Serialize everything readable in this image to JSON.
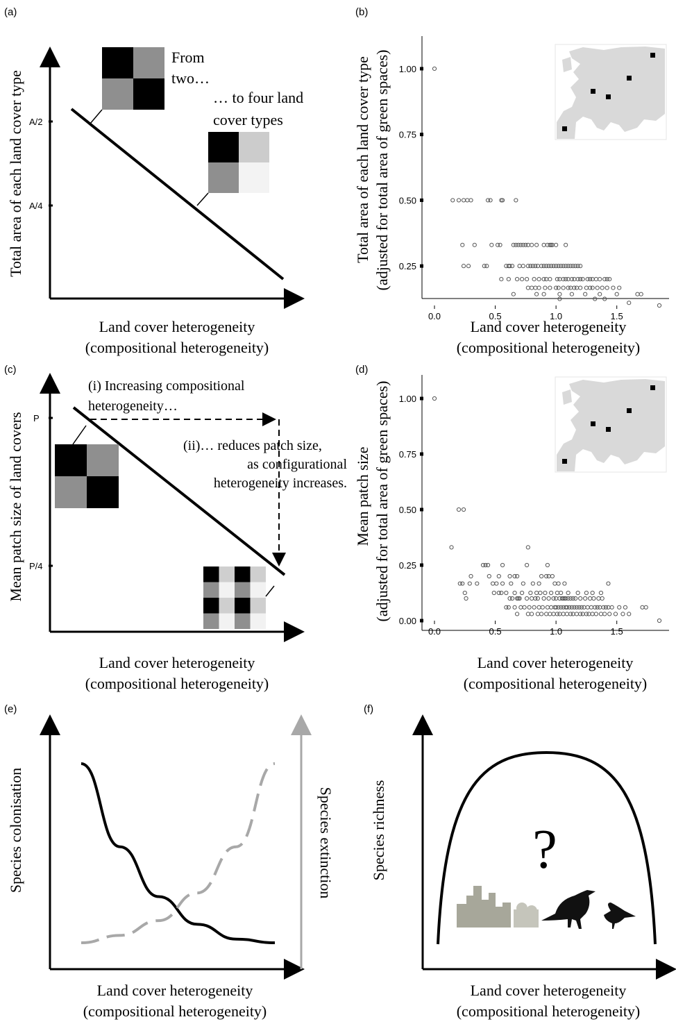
{
  "panels": {
    "a": {
      "label": "(a)",
      "ylabel": "Total area of each land cover type",
      "xlabel_line1": "Land cover heterogeneity",
      "xlabel_line2": "(compositional heterogeneity)",
      "ticks": [
        "A/2",
        "A/4"
      ],
      "annot_from_1": "From",
      "annot_from_2": "two…",
      "annot_to_1": "… to four land",
      "annot_to_2": "cover types"
    },
    "b": {
      "label": "(b)",
      "ylabel_line1": "Total area of each land cover type",
      "ylabel_line2": "(adjusted for total area of green spaces)",
      "xlabel_line1": "Land cover heterogeneity",
      "xlabel_line2": "(compositional heterogeneity)",
      "yticks": [
        "1.00",
        "0.75",
        "0.50",
        "0.25"
      ],
      "xticks": [
        "0.0",
        "0.5",
        "1.0",
        "1.5"
      ]
    },
    "c": {
      "label": "(c)",
      "ylabel": "Mean patch size of land covers",
      "xlabel_line1": "Land cover heterogeneity",
      "xlabel_line2": "(compositional heterogeneity)",
      "ticks": [
        "P",
        "P/4"
      ],
      "annot_i_1": "(i) Increasing compositional",
      "annot_i_2": "heterogeneity…",
      "annot_ii_1": "(ii)… reduces patch size,",
      "annot_ii_2": "as configurational",
      "annot_ii_3": "heterogeneity increases."
    },
    "d": {
      "label": "(d)",
      "ylabel_line1": "Mean patch size",
      "ylabel_line2": "(adjusted for total area of green spaces)",
      "xlabel_line1": "Land cover heterogeneity",
      "xlabel_line2": "(compositional heterogeneity)",
      "yticks": [
        "1.00",
        "0.75",
        "0.50",
        "0.25",
        "0.00"
      ],
      "xticks": [
        "0.0",
        "0.5",
        "1.0",
        "1.5"
      ]
    },
    "e": {
      "label": "(e)",
      "ylabel_left": "Species colonisation",
      "ylabel_right": "Species extinction",
      "xlabel_line1": "Land cover heterogeneity",
      "xlabel_line2": "(compositional heterogeneity)"
    },
    "f": {
      "label": "(f)",
      "ylabel": "Species richness",
      "xlabel_line1": "Land cover heterogeneity",
      "xlabel_line2": "(compositional heterogeneity)",
      "question": "?"
    }
  },
  "colors": {
    "line": "#000000",
    "grey_curve": "#a8a8a8",
    "map_fill": "#d9d9d9",
    "city": "#a7a79a"
  },
  "chart_data": [
    {
      "type": "line",
      "panel": "a",
      "series": [
        {
          "x": [
            0,
            1
          ],
          "y": [
            0.55,
            0.05
          ]
        }
      ],
      "yticks": [
        "A/2",
        "A/4"
      ]
    },
    {
      "type": "scatter",
      "panel": "b",
      "xlim": [
        0,
        1.85
      ],
      "ylim": [
        0.1,
        1.05
      ],
      "x": [
        0.0,
        0.15,
        0.2,
        0.24,
        0.27,
        0.3,
        0.44,
        0.46,
        0.55,
        0.56,
        0.67,
        0.23,
        0.33,
        0.47,
        0.52,
        0.54,
        0.65,
        0.67,
        0.69,
        0.71,
        0.73,
        0.75,
        0.77,
        0.8,
        0.84,
        0.9,
        0.93,
        0.95,
        0.96,
        0.97,
        1.0,
        1.08,
        0.24,
        0.28,
        0.41,
        0.43,
        0.59,
        0.61,
        0.62,
        0.64,
        0.7,
        0.73,
        0.77,
        0.79,
        0.81,
        0.83,
        0.85,
        0.88,
        0.9,
        0.92,
        0.94,
        0.96,
        0.98,
        1.0,
        1.02,
        1.04,
        1.06,
        1.08,
        1.1,
        1.12,
        1.14,
        1.16,
        1.18,
        1.2,
        0.55,
        0.61,
        0.68,
        0.72,
        0.76,
        0.82,
        0.86,
        0.9,
        0.92,
        0.95,
        1.01,
        1.03,
        1.06,
        1.08,
        1.1,
        1.13,
        1.15,
        1.18,
        1.2,
        1.22,
        1.26,
        1.28,
        1.3,
        1.33,
        1.36,
        1.4,
        1.42,
        1.44,
        0.77,
        0.8,
        0.83,
        0.86,
        0.91,
        0.95,
        1.0,
        1.02,
        1.06,
        1.1,
        1.12,
        1.15,
        1.17,
        1.2,
        1.25,
        1.28,
        1.3,
        1.34,
        1.38,
        1.42,
        1.47,
        1.52,
        1.67,
        1.7,
        0.65,
        0.84,
        0.9,
        1.03,
        1.13,
        1.24,
        1.36,
        1.5,
        1.03,
        1.32,
        1.4,
        1.6,
        1.85
      ],
      "y": [
        1.0,
        0.5,
        0.5,
        0.5,
        0.5,
        0.5,
        0.5,
        0.5,
        0.5,
        0.5,
        0.5,
        0.33,
        0.33,
        0.33,
        0.33,
        0.33,
        0.33,
        0.33,
        0.33,
        0.33,
        0.33,
        0.33,
        0.33,
        0.33,
        0.33,
        0.33,
        0.33,
        0.33,
        0.33,
        0.33,
        0.33,
        0.33,
        0.25,
        0.25,
        0.25,
        0.25,
        0.25,
        0.25,
        0.25,
        0.25,
        0.25,
        0.25,
        0.25,
        0.25,
        0.25,
        0.25,
        0.25,
        0.25,
        0.25,
        0.25,
        0.25,
        0.25,
        0.25,
        0.25,
        0.25,
        0.25,
        0.25,
        0.25,
        0.25,
        0.25,
        0.25,
        0.25,
        0.25,
        0.25,
        0.2,
        0.2,
        0.2,
        0.2,
        0.2,
        0.2,
        0.2,
        0.2,
        0.2,
        0.2,
        0.2,
        0.2,
        0.2,
        0.2,
        0.2,
        0.2,
        0.2,
        0.2,
        0.2,
        0.2,
        0.2,
        0.2,
        0.2,
        0.2,
        0.2,
        0.2,
        0.2,
        0.2,
        0.167,
        0.167,
        0.167,
        0.167,
        0.167,
        0.167,
        0.167,
        0.167,
        0.167,
        0.167,
        0.167,
        0.167,
        0.167,
        0.167,
        0.167,
        0.167,
        0.167,
        0.167,
        0.167,
        0.167,
        0.167,
        0.167,
        0.143,
        0.143,
        0.143,
        0.143,
        0.143,
        0.143,
        0.143,
        0.143,
        0.143,
        0.143,
        0.125,
        0.125,
        0.125,
        0.11,
        0.1
      ]
    },
    {
      "type": "line",
      "panel": "c",
      "series": [
        {
          "x": [
            0,
            1
          ],
          "y": [
            1,
            0.25
          ]
        }
      ],
      "yticks": [
        "P",
        "P/4"
      ]
    },
    {
      "type": "scatter",
      "panel": "d",
      "xlim": [
        0,
        1.85
      ],
      "ylim": [
        0,
        1.05
      ],
      "x": [
        0.0,
        0.2,
        0.24,
        0.14,
        0.77,
        0.4,
        0.42,
        0.44,
        0.56,
        0.76,
        0.93,
        0.3,
        0.45,
        0.53,
        0.62,
        0.66,
        0.68,
        0.88,
        0.92,
        0.94,
        0.97,
        0.21,
        0.23,
        0.29,
        0.35,
        0.48,
        0.51,
        0.56,
        0.63,
        0.73,
        0.81,
        0.86,
        0.99,
        1.02,
        1.07,
        1.43,
        0.25,
        0.49,
        0.53,
        0.55,
        0.59,
        0.66,
        0.72,
        0.79,
        0.84,
        0.87,
        0.91,
        0.96,
        1.01,
        1.04,
        1.1,
        1.18,
        1.25,
        1.3,
        1.37,
        0.26,
        0.62,
        0.64,
        0.68,
        0.69,
        0.7,
        0.76,
        0.8,
        0.83,
        0.85,
        0.9,
        0.94,
        0.98,
        1.0,
        1.03,
        1.05,
        1.06,
        1.07,
        1.08,
        1.1,
        1.12,
        1.14,
        1.16,
        1.2,
        1.24,
        1.28,
        1.31,
        1.35,
        1.38,
        0.59,
        0.61,
        0.66,
        0.71,
        0.74,
        0.78,
        0.82,
        0.86,
        0.89,
        0.93,
        0.96,
        0.99,
        1.0,
        1.02,
        1.04,
        1.06,
        1.08,
        1.09,
        1.11,
        1.13,
        1.15,
        1.17,
        1.19,
        1.21,
        1.23,
        1.26,
        1.29,
        1.32,
        1.34,
        1.36,
        1.39,
        1.41,
        1.43,
        1.46,
        1.52,
        1.57,
        1.71,
        1.74,
        0.68,
        0.77,
        0.8,
        0.85,
        0.88,
        0.92,
        0.95,
        0.98,
        1.01,
        1.03,
        1.06,
        1.09,
        1.12,
        1.14,
        1.17,
        1.2,
        1.22,
        1.25,
        1.27,
        1.3,
        1.33,
        1.37,
        1.4,
        1.44,
        1.49,
        1.55,
        1.6,
        1.85
      ],
      "y": [
        1.0,
        0.5,
        0.5,
        0.33,
        0.33,
        0.25,
        0.25,
        0.25,
        0.25,
        0.25,
        0.25,
        0.2,
        0.2,
        0.2,
        0.2,
        0.2,
        0.2,
        0.2,
        0.2,
        0.2,
        0.2,
        0.167,
        0.167,
        0.167,
        0.167,
        0.167,
        0.167,
        0.167,
        0.167,
        0.167,
        0.167,
        0.167,
        0.167,
        0.167,
        0.167,
        0.167,
        0.125,
        0.125,
        0.125,
        0.125,
        0.125,
        0.125,
        0.125,
        0.125,
        0.125,
        0.125,
        0.125,
        0.125,
        0.125,
        0.125,
        0.125,
        0.125,
        0.125,
        0.125,
        0.125,
        0.1,
        0.1,
        0.1,
        0.1,
        0.1,
        0.1,
        0.1,
        0.1,
        0.1,
        0.1,
        0.1,
        0.1,
        0.1,
        0.1,
        0.1,
        0.1,
        0.1,
        0.1,
        0.1,
        0.1,
        0.1,
        0.1,
        0.1,
        0.1,
        0.1,
        0.1,
        0.1,
        0.1,
        0.1,
        0.06,
        0.06,
        0.06,
        0.06,
        0.06,
        0.06,
        0.06,
        0.06,
        0.06,
        0.06,
        0.06,
        0.06,
        0.06,
        0.06,
        0.06,
        0.06,
        0.06,
        0.06,
        0.06,
        0.06,
        0.06,
        0.06,
        0.06,
        0.06,
        0.06,
        0.06,
        0.06,
        0.06,
        0.06,
        0.06,
        0.06,
        0.06,
        0.06,
        0.06,
        0.06,
        0.06,
        0.06,
        0.06,
        0.03,
        0.03,
        0.03,
        0.03,
        0.03,
        0.03,
        0.03,
        0.03,
        0.03,
        0.03,
        0.03,
        0.03,
        0.03,
        0.03,
        0.03,
        0.03,
        0.03,
        0.03,
        0.03,
        0.03,
        0.03,
        0.03,
        0.03,
        0.03,
        0.03,
        0.03,
        0.03,
        0.0
      ]
    },
    {
      "type": "line",
      "panel": "e",
      "series": [
        {
          "name": "",
          "x": [
            0,
            0.2,
            0.4,
            0.6,
            0.8,
            1.0
          ],
          "y": [
            1.0,
            0.55,
            0.28,
            0.13,
            0.05,
            0.03
          ]
        },
        {
          "name": "",
          "x": [
            0,
            0.2,
            0.4,
            0.6,
            0.8,
            1.0
          ],
          "y": [
            0.03,
            0.07,
            0.15,
            0.3,
            0.55,
            1.0
          ]
        }
      ]
    },
    {
      "type": "line",
      "panel": "f",
      "series": [
        {
          "x": [
            0,
            0.25,
            0.5,
            0.75,
            1.0
          ],
          "y": [
            0.0,
            0.8,
            1.0,
            0.8,
            0.0
          ]
        }
      ]
    }
  ]
}
